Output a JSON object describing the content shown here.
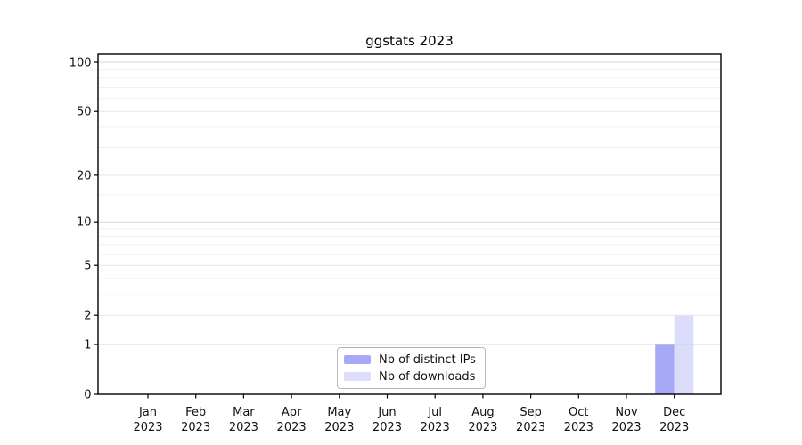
{
  "chart_data": {
    "type": "bar",
    "title": "ggstats 2023",
    "categories": [
      "Jan",
      "Feb",
      "Mar",
      "Apr",
      "May",
      "Jun",
      "Jul",
      "Aug",
      "Sep",
      "Oct",
      "Nov",
      "Dec"
    ],
    "x_year": "2023",
    "series": [
      {
        "name": "Nb of distinct IPs",
        "color": "#a6a9f6",
        "values": [
          0,
          0,
          0,
          0,
          0,
          0,
          0,
          0,
          0,
          0,
          0,
          1
        ]
      },
      {
        "name": "Nb of downloads",
        "color": "#dbddfb",
        "values": [
          0,
          0,
          0,
          0,
          0,
          0,
          0,
          0,
          0,
          0,
          0,
          2
        ]
      }
    ],
    "yscale": "log1p",
    "ylim": [
      0,
      113
    ],
    "y_ticks": [
      0,
      1,
      2,
      5,
      10,
      20,
      50,
      100
    ],
    "y_major_gridlines": [
      1,
      10,
      100
    ],
    "y_minor_gridlines": [
      3,
      4,
      6,
      7,
      8,
      9,
      15,
      30,
      40,
      60,
      70,
      80,
      90
    ],
    "xlabel": "",
    "ylabel": "",
    "grid": "horizontal",
    "legend": {
      "position": "bottom-center",
      "entries": [
        "Nb of distinct IPs",
        "Nb of downloads"
      ]
    }
  },
  "colors": {
    "bar_distinct_ips": "#a6a9f6",
    "bar_downloads": "#dbddfb",
    "grid_major": "#d2d2d2",
    "grid_mid": "#e3e3e3",
    "grid_minor": "#efefef",
    "spine": "#000000",
    "text": "#111111",
    "legend_border": "#b7b7b7",
    "background": "#ffffff"
  }
}
